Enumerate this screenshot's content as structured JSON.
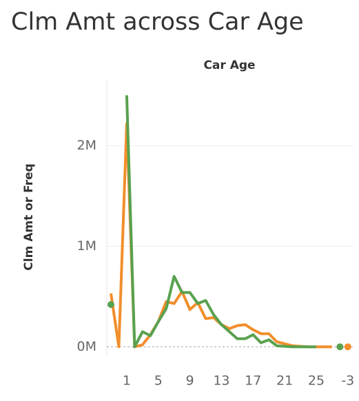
{
  "chart_data": {
    "type": "line",
    "title": "Clm Amt across Car Age",
    "x_label": "Car Age",
    "y_label": "Clm Amt or Freq",
    "categories": [
      null,
      null,
      "1",
      null,
      null,
      null,
      "5",
      null,
      null,
      null,
      "9",
      null,
      null,
      null,
      "13",
      null,
      null,
      null,
      "17",
      null,
      null,
      null,
      "21",
      null,
      null,
      null,
      "25",
      null,
      null,
      null,
      "-3"
    ],
    "series": [
      {
        "name": "Clm Amt",
        "color": "#f28e2b",
        "values": [
          530000,
          0,
          2220000,
          0,
          20000,
          120000,
          250000,
          450000,
          430000,
          550000,
          370000,
          440000,
          280000,
          290000,
          220000,
          180000,
          210000,
          220000,
          170000,
          130000,
          130000,
          50000,
          30000,
          10000,
          5000,
          0,
          0,
          0,
          0,
          null,
          0
        ]
      },
      {
        "name": "Freq",
        "color": "#59a14f",
        "values": [
          420000,
          null,
          2500000,
          0,
          150000,
          110000,
          250000,
          380000,
          700000,
          540000,
          540000,
          430000,
          460000,
          320000,
          220000,
          150000,
          80000,
          80000,
          120000,
          40000,
          70000,
          10000,
          5000,
          0,
          0,
          0,
          0,
          null,
          null,
          0,
          null
        ]
      }
    ],
    "ylim": [
      -80000,
      2660000
    ],
    "yticks": [
      {
        "value": 0,
        "label": "0M"
      },
      {
        "value": 1000000,
        "label": "1M"
      },
      {
        "value": 2000000,
        "label": "2M"
      }
    ],
    "grid": true
  }
}
